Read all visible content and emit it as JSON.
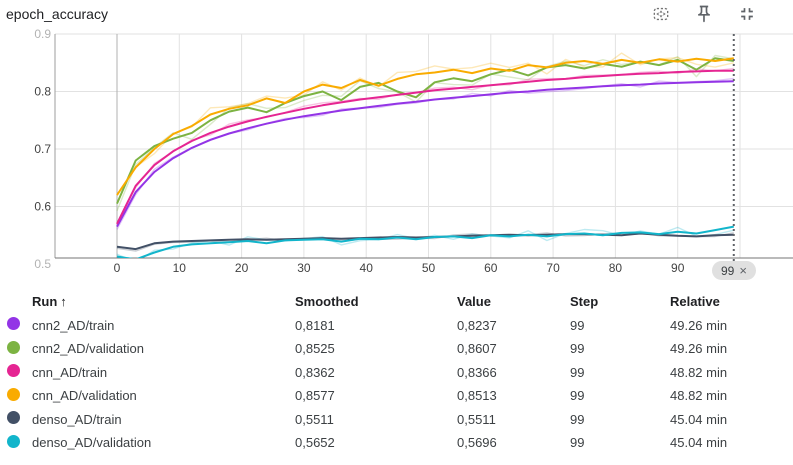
{
  "card": {
    "title": "epoch_accuracy"
  },
  "toolbar": {
    "icons": [
      "fit-domain-to-data-icon",
      "pin-card-icon",
      "fullscreen-exit-icon"
    ]
  },
  "icons": {
    "close": "×",
    "sort_ascending": "↑"
  },
  "step_selector": {
    "label": "99"
  },
  "colors": {
    "cnn2_train": "#9334e6",
    "cnn2_validation": "#7cb342",
    "cnn_train": "#e52592",
    "cnn_validation": "#f9ab00",
    "denso_train": "#425066",
    "denso_validation": "#12b5cb",
    "grid": "#e2e2e2",
    "axis": "#9e9e9e",
    "cursor": "#5f6368"
  },
  "chart_data": {
    "type": "line",
    "title": "epoch_accuracy",
    "xlabel": "",
    "ylabel": "",
    "xlim": [
      -10,
      108.5
    ],
    "ylim": [
      0.507,
      0.9
    ],
    "x_ticks": [
      0,
      10,
      20,
      30,
      40,
      50,
      60,
      70,
      80,
      90
    ],
    "y_ticks": [
      0.5,
      0.6,
      0.7,
      0.8,
      0.9
    ],
    "y_ticks_faded": [
      0.5,
      0.9
    ],
    "x_gridlines": [
      0,
      10,
      20,
      30,
      40,
      50,
      60,
      70,
      80,
      90,
      100
    ],
    "grid": true,
    "legend_position": "table-below",
    "cursor_step": 99,
    "x": [
      0,
      3,
      6,
      9,
      12,
      15,
      18,
      21,
      24,
      27,
      30,
      33,
      36,
      39,
      42,
      45,
      48,
      51,
      54,
      57,
      60,
      63,
      66,
      69,
      72,
      75,
      78,
      81,
      84,
      87,
      90,
      93,
      96,
      99
    ],
    "series": [
      {
        "name": "cnn2_AD/train",
        "color": "#9334e6",
        "raw_jitter": 0.005,
        "values": [
          0.565,
          0.625,
          0.66,
          0.684,
          0.702,
          0.716,
          0.727,
          0.736,
          0.744,
          0.751,
          0.757,
          0.762,
          0.767,
          0.771,
          0.775,
          0.779,
          0.782,
          0.786,
          0.789,
          0.792,
          0.795,
          0.798,
          0.8,
          0.803,
          0.805,
          0.807,
          0.809,
          0.811,
          0.812,
          0.814,
          0.815,
          0.816,
          0.817,
          0.818
        ]
      },
      {
        "name": "cnn2_AD/validation",
        "color": "#7cb342",
        "raw_jitter": 0.013,
        "values": [
          0.605,
          0.68,
          0.705,
          0.718,
          0.728,
          0.75,
          0.765,
          0.772,
          0.764,
          0.78,
          0.792,
          0.8,
          0.785,
          0.808,
          0.815,
          0.8,
          0.79,
          0.816,
          0.823,
          0.818,
          0.83,
          0.838,
          0.828,
          0.842,
          0.846,
          0.84,
          0.848,
          0.843,
          0.852,
          0.846,
          0.855,
          0.838,
          0.858,
          0.853
        ]
      },
      {
        "name": "cnn_AD/train",
        "color": "#e52592",
        "raw_jitter": 0.005,
        "values": [
          0.57,
          0.636,
          0.672,
          0.696,
          0.714,
          0.728,
          0.739,
          0.748,
          0.756,
          0.763,
          0.77,
          0.776,
          0.781,
          0.786,
          0.79,
          0.794,
          0.798,
          0.802,
          0.805,
          0.808,
          0.811,
          0.814,
          0.817,
          0.82,
          0.822,
          0.825,
          0.827,
          0.829,
          0.831,
          0.832,
          0.834,
          0.835,
          0.836,
          0.836
        ]
      },
      {
        "name": "cnn_AD/validation",
        "color": "#f9ab00",
        "raw_jitter": 0.012,
        "values": [
          0.62,
          0.668,
          0.7,
          0.726,
          0.74,
          0.76,
          0.77,
          0.776,
          0.788,
          0.78,
          0.8,
          0.812,
          0.806,
          0.82,
          0.81,
          0.822,
          0.83,
          0.833,
          0.838,
          0.832,
          0.84,
          0.836,
          0.846,
          0.842,
          0.85,
          0.853,
          0.848,
          0.855,
          0.85,
          0.856,
          0.852,
          0.857,
          0.853,
          0.858
        ]
      },
      {
        "name": "denso_AD/train",
        "color": "#425066",
        "raw_jitter": 0.004,
        "values": [
          0.53,
          0.526,
          0.536,
          0.539,
          0.54,
          0.541,
          0.542,
          0.543,
          0.542,
          0.543,
          0.544,
          0.545,
          0.544,
          0.545,
          0.546,
          0.547,
          0.546,
          0.547,
          0.548,
          0.549,
          0.55,
          0.551,
          0.55,
          0.551,
          0.552,
          0.552,
          0.551,
          0.55,
          0.553,
          0.551,
          0.549,
          0.548,
          0.55,
          0.551
        ]
      },
      {
        "name": "denso_AD/validation",
        "color": "#12b5cb",
        "raw_jitter": 0.008,
        "values": [
          0.513,
          0.508,
          0.52,
          0.53,
          0.534,
          0.536,
          0.538,
          0.54,
          0.536,
          0.541,
          0.542,
          0.543,
          0.539,
          0.544,
          0.543,
          0.546,
          0.543,
          0.547,
          0.548,
          0.545,
          0.55,
          0.548,
          0.551,
          0.548,
          0.552,
          0.553,
          0.55,
          0.554,
          0.555,
          0.552,
          0.556,
          0.553,
          0.559,
          0.565
        ]
      }
    ]
  },
  "table": {
    "columns": [
      "Run",
      "Smoothed",
      "Value",
      "Step",
      "Relative"
    ],
    "rows": [
      {
        "run": "cnn2_AD/train",
        "color": "#9334e6",
        "smoothed": "0,8181",
        "value": "0,8237",
        "step": "99",
        "relative": "49.26 min"
      },
      {
        "run": "cnn2_AD/validation",
        "color": "#7cb342",
        "smoothed": "0,8525",
        "value": "0,8607",
        "step": "99",
        "relative": "49.26 min"
      },
      {
        "run": "cnn_AD/train",
        "color": "#e52592",
        "smoothed": "0,8362",
        "value": "0,8366",
        "step": "99",
        "relative": "48.82 min"
      },
      {
        "run": "cnn_AD/validation",
        "color": "#f9ab00",
        "smoothed": "0,8577",
        "value": "0,8513",
        "step": "99",
        "relative": "48.82 min"
      },
      {
        "run": "denso_AD/train",
        "color": "#425066",
        "smoothed": "0,5511",
        "value": "0,5511",
        "step": "99",
        "relative": "45.04 min"
      },
      {
        "run": "denso_AD/validation",
        "color": "#12b5cb",
        "smoothed": "0,5652",
        "value": "0,5696",
        "step": "99",
        "relative": "45.04 min"
      }
    ]
  }
}
